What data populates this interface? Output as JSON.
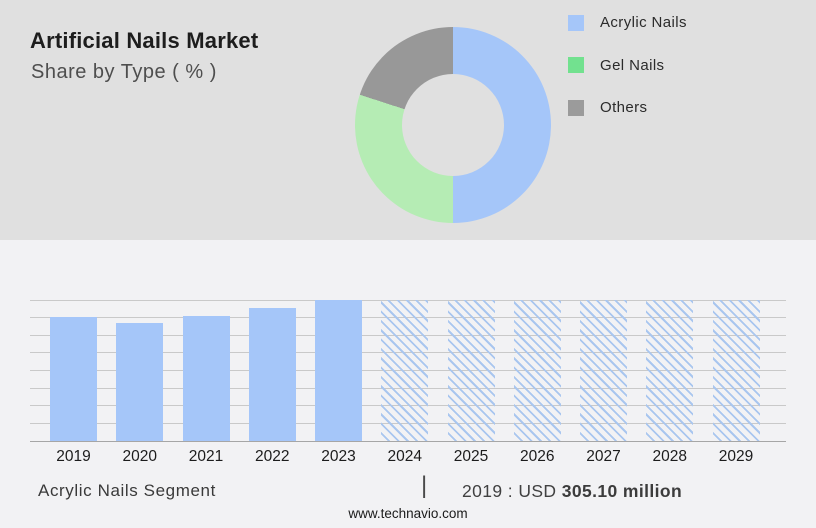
{
  "header": {
    "title": "Artificial Nails Market",
    "subtitle": "Share by Type ( % )"
  },
  "chart_data": [
    {
      "type": "pie",
      "donut": true,
      "title": "Share by Type ( % )",
      "labels": [
        "Acrylic Nails",
        "Gel Nails",
        "Others"
      ],
      "values": [
        50,
        30,
        20
      ],
      "colors": [
        "#a5c6f9",
        "#b5ecb4",
        "#989898"
      ],
      "legend_swatch_colors": [
        "#a5c6f9",
        "#72e18f",
        "#9b9b9b"
      ],
      "legend_position": "right",
      "start_angle_deg": 0,
      "direction": "clockwise"
    },
    {
      "type": "bar",
      "title": "",
      "categories": [
        "2019",
        "2020",
        "2021",
        "2022",
        "2023",
        "2024",
        "2025",
        "2026",
        "2027",
        "2028",
        "2029"
      ],
      "values": [
        88,
        84,
        89,
        94,
        100,
        100,
        100,
        100,
        100,
        100,
        100
      ],
      "hatched": [
        false,
        false,
        false,
        false,
        false,
        true,
        true,
        true,
        true,
        true,
        true
      ],
      "bar_color": "#a5c6f9",
      "hatch_line_color": "#a9c6ef",
      "xlabel": "",
      "ylabel": "",
      "ylim": [
        0,
        100
      ],
      "grid": true,
      "grid_intervals": 8,
      "note": "y-axis unlabeled; values relative to 2023 peak = 100; 2024-2029 shown as hatched forecast bars"
    }
  ],
  "footer": {
    "segment_label": "Acrylic Nails Segment",
    "divider": "|",
    "value_prefix": "2019 : USD",
    "value_bold": "305.10 million",
    "website": "www.technavio.com"
  }
}
